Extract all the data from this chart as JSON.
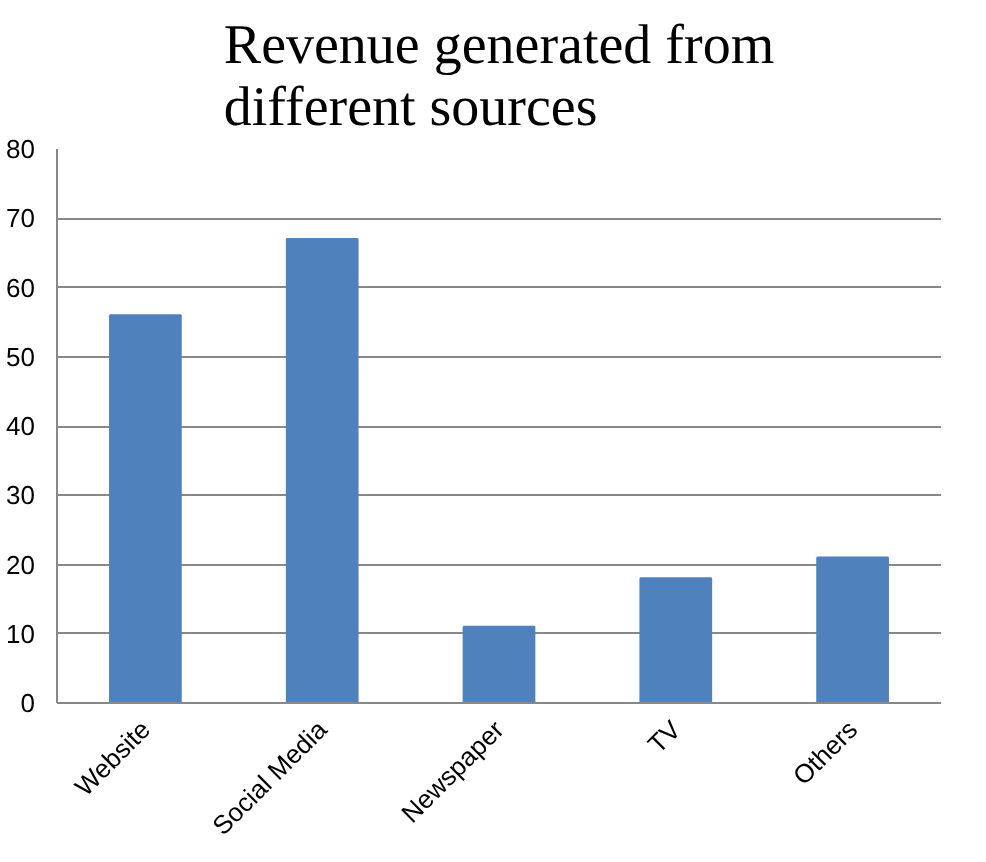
{
  "chart_data": {
    "type": "bar",
    "title": "Revenue generated from different sources",
    "categories": [
      "Website",
      "Social Media",
      "Newspaper",
      "TV",
      "Others"
    ],
    "values": [
      56,
      67,
      11,
      18,
      21
    ],
    "color": "#4f81bd",
    "ylim": [
      0,
      80
    ],
    "yticks": [
      0,
      10,
      20,
      30,
      40,
      50,
      60,
      70,
      80
    ],
    "grid": "y"
  }
}
